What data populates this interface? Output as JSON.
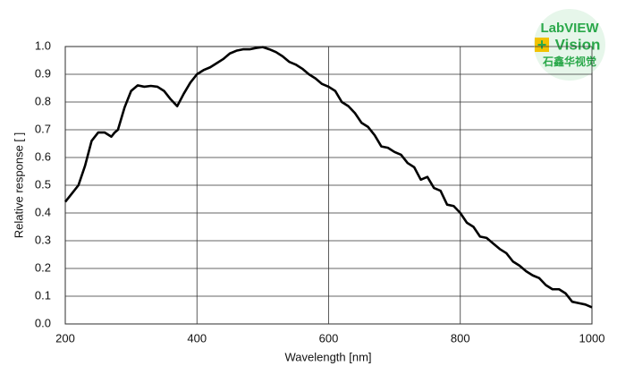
{
  "chart_data": {
    "type": "line",
    "xlabel": "Wavelength [nm]",
    "ylabel": "Relative response [ ]",
    "x": [
      200,
      210,
      220,
      230,
      240,
      250,
      260,
      270,
      275,
      280,
      290,
      300,
      310,
      320,
      330,
      340,
      350,
      360,
      370,
      380,
      390,
      400,
      410,
      420,
      430,
      440,
      450,
      460,
      470,
      480,
      490,
      500,
      510,
      520,
      530,
      540,
      550,
      560,
      570,
      580,
      590,
      600,
      610,
      620,
      630,
      640,
      650,
      660,
      670,
      680,
      690,
      700,
      710,
      720,
      730,
      740,
      750,
      760,
      770,
      780,
      790,
      800,
      810,
      820,
      830,
      840,
      850,
      860,
      870,
      880,
      890,
      900,
      910,
      920,
      930,
      940,
      950,
      960,
      970,
      980,
      990,
      1000
    ],
    "series": [
      {
        "name": "response",
        "color": "#000000",
        "values": [
          0.44,
          0.47,
          0.5,
          0.57,
          0.66,
          0.69,
          0.69,
          0.675,
          0.69,
          0.7,
          0.78,
          0.84,
          0.86,
          0.855,
          0.858,
          0.855,
          0.84,
          0.81,
          0.785,
          0.83,
          0.87,
          0.9,
          0.915,
          0.925,
          0.94,
          0.955,
          0.975,
          0.985,
          0.99,
          0.99,
          0.995,
          0.998,
          0.99,
          0.98,
          0.965,
          0.945,
          0.935,
          0.92,
          0.9,
          0.885,
          0.865,
          0.855,
          0.84,
          0.8,
          0.785,
          0.76,
          0.725,
          0.71,
          0.68,
          0.64,
          0.635,
          0.62,
          0.61,
          0.58,
          0.565,
          0.52,
          0.53,
          0.49,
          0.48,
          0.43,
          0.425,
          0.4,
          0.365,
          0.35,
          0.315,
          0.31,
          0.29,
          0.27,
          0.255,
          0.225,
          0.21,
          0.19,
          0.175,
          0.165,
          0.14,
          0.125,
          0.125,
          0.11,
          0.08,
          0.075,
          0.07,
          0.06
        ]
      }
    ],
    "xlim": [
      200,
      1000
    ],
    "xticks": [
      200,
      400,
      600,
      800,
      1000
    ],
    "ylim": [
      0,
      1
    ],
    "yticks": [
      {
        "value": 0,
        "label": "0.0"
      },
      0.1,
      0.2,
      0.3,
      0.4,
      0.5,
      0.6,
      0.7,
      0.8,
      0.9,
      {
        "value": 1,
        "label": "1.0"
      }
    ],
    "grid": true
  },
  "watermark": {
    "line1": "LabVIEW",
    "line2": "Vision",
    "line3": "石鑫华视觉"
  }
}
